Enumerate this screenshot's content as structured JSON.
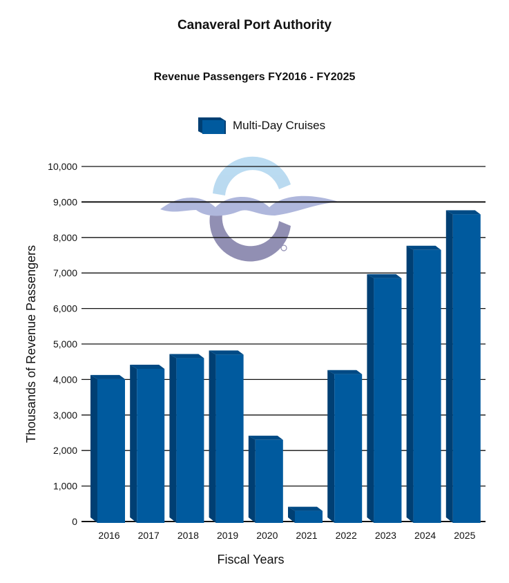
{
  "header": {
    "title": "Canaveral Port Authority",
    "subtitle": "Revenue Passengers FY2016 - FY2025"
  },
  "legend": {
    "label": "Multi-Day Cruises",
    "color": "#005a9e"
  },
  "logo": {
    "icon": "port-canaveral-logo-icon",
    "colors": {
      "top_arc": "#b3d7ef",
      "waves": "#a7b0d9",
      "bottom_arc": "#8683ab"
    }
  },
  "colors": {
    "bar_front": "#005a9e",
    "bar_side": "#003f73",
    "bar_top": "#004a85",
    "gridline": "#111111"
  },
  "chart_data": {
    "type": "bar",
    "title": "Revenue Passengers FY2016 - FY2025",
    "subtitle": "Canaveral Port Authority",
    "xlabel": "Fiscal Years",
    "ylabel": "Thousands of Revenue Passengers",
    "categories": [
      "2016",
      "2017",
      "2018",
      "2019",
      "2020",
      "2021",
      "2022",
      "2023",
      "2024",
      "2025"
    ],
    "series": [
      {
        "name": "Multi-Day Cruises",
        "values": [
          4010,
          4300,
          4600,
          4700,
          2300,
          300,
          4150,
          6850,
          7650,
          8650
        ]
      }
    ],
    "yticks": [
      0,
      1000,
      2000,
      3000,
      4000,
      5000,
      6000,
      7000,
      8000,
      9000,
      10000
    ],
    "ytick_labels": [
      "0",
      "1,000",
      "2,000",
      "3,000",
      "4,000",
      "5,000",
      "6,000",
      "7,000",
      "8,000",
      "9,000",
      "10,000"
    ],
    "ylim": [
      0,
      10000
    ],
    "grid": true,
    "legend_position": "top"
  }
}
